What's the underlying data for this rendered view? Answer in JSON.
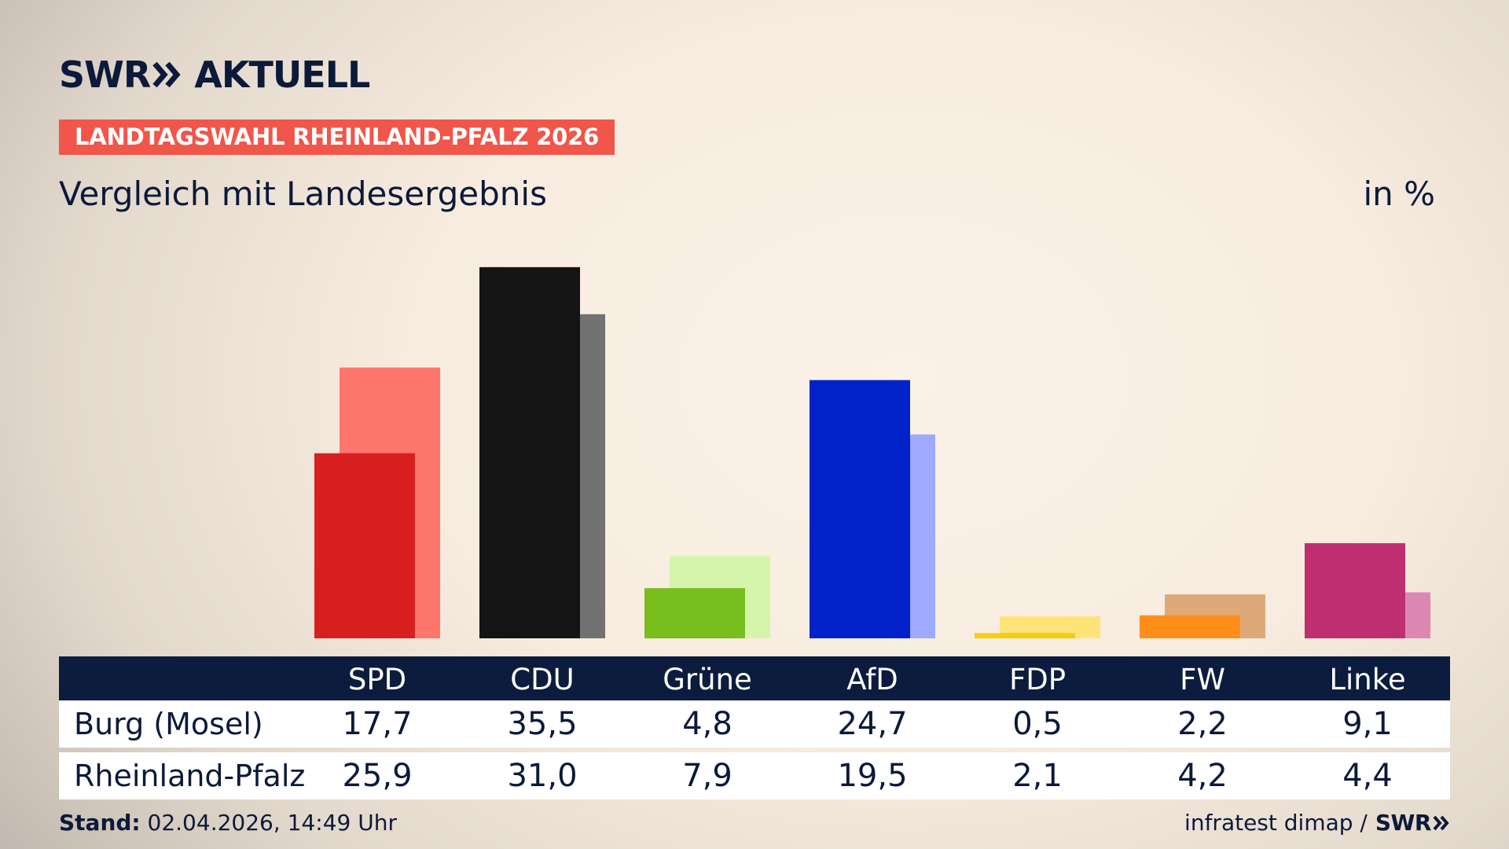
{
  "brand": {
    "name": "SWR",
    "product": "AKTUELL"
  },
  "tag": "LANDTAGSWAHL RHEINLAND-PFALZ 2026",
  "subtitle": "Vergleich mit Landesergebnis",
  "unit": "in %",
  "colors": {
    "tag": "#f0564a",
    "header_bg": "#0c1c3e",
    "text": "#0b1a3a"
  },
  "chart_data": {
    "type": "bar",
    "categories": [
      "SPD",
      "CDU",
      "Grüne",
      "AfD",
      "FDP",
      "FW",
      "Linke"
    ],
    "series": [
      {
        "name": "Burg (Mosel)",
        "values": [
          17.7,
          35.5,
          4.8,
          24.7,
          0.5,
          2.2,
          9.1
        ]
      },
      {
        "name": "Rheinland-Pfalz",
        "values": [
          25.9,
          31.0,
          7.9,
          19.5,
          2.1,
          4.2,
          4.4
        ]
      }
    ],
    "colors_local": [
      "#d71f20",
      "#141414",
      "#78be1c",
      "#0022c8",
      "#f6cc12",
      "#ff8d1a",
      "#be2f72"
    ],
    "colors_state": [
      "#ff766c",
      "#727272",
      "#d6f5ac",
      "#9eaafd",
      "#fee478",
      "#dda978",
      "#dd88b2"
    ],
    "ylim": [
      0,
      36
    ],
    "legend": "table-below"
  },
  "table": {
    "headers": [
      "SPD",
      "CDU",
      "Grüne",
      "AfD",
      "FDP",
      "FW",
      "Linke"
    ],
    "rows": [
      {
        "label": "Burg (Mosel)",
        "values": [
          "17,7",
          "35,5",
          "4,8",
          "24,7",
          "0,5",
          "2,2",
          "9,1"
        ]
      },
      {
        "label": "Rheinland-Pfalz",
        "values": [
          "25,9",
          "31,0",
          "7,9",
          "19,5",
          "2,1",
          "4,2",
          "4,4"
        ]
      }
    ]
  },
  "footer": {
    "stand_label": "Stand:",
    "stand_value": "02.04.2026, 14:49 Uhr",
    "source": "infratest dimap /",
    "source_brand": "SWR"
  }
}
